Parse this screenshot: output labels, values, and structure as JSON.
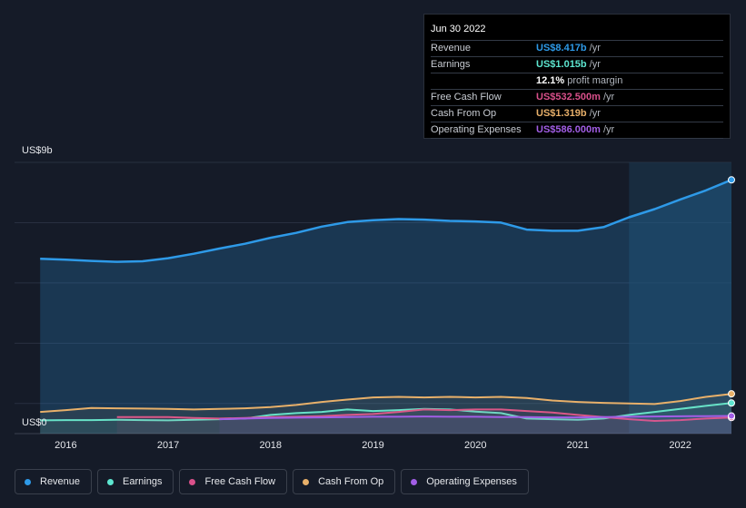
{
  "tooltip": {
    "date": "Jun 30 2022",
    "rows": [
      {
        "label": "Revenue",
        "value": "US$8.417b",
        "unit": "/yr",
        "color": "#2e9ae8"
      },
      {
        "label": "Earnings",
        "value": "US$1.015b",
        "unit": "/yr",
        "color": "#5de6d0"
      },
      {
        "label": "",
        "value": "12.1%",
        "unit": "profit margin",
        "color": "#ffffff"
      },
      {
        "label": "Free Cash Flow",
        "value": "US$532.500m",
        "unit": "/yr",
        "color": "#d9508a"
      },
      {
        "label": "Cash From Op",
        "value": "US$1.319b",
        "unit": "/yr",
        "color": "#e8b06a"
      },
      {
        "label": "Operating Expenses",
        "value": "US$586.000m",
        "unit": "/yr",
        "color": "#a25ee6"
      }
    ]
  },
  "chart_data": {
    "type": "area",
    "y_top_label": "US$9b",
    "y_bottom_label": "US$0",
    "ylim": [
      0,
      9
    ],
    "xlim": [
      2015.5,
      2022.5
    ],
    "x_ticks": [
      "2016",
      "2017",
      "2018",
      "2019",
      "2020",
      "2021",
      "2022"
    ],
    "highlight_start": 2021.5,
    "series": [
      {
        "name": "Revenue",
        "color": "#2e9ae8",
        "fill": true,
        "x": [
          2015.75,
          2016.0,
          2016.25,
          2016.5,
          2016.75,
          2017.0,
          2017.25,
          2017.5,
          2017.75,
          2018.0,
          2018.25,
          2018.5,
          2018.75,
          2019.0,
          2019.25,
          2019.5,
          2019.75,
          2020.0,
          2020.25,
          2020.5,
          2020.75,
          2021.0,
          2021.25,
          2021.5,
          2021.75,
          2022.0,
          2022.25,
          2022.5
        ],
        "y": [
          5.8,
          5.77,
          5.73,
          5.7,
          5.72,
          5.82,
          5.97,
          6.14,
          6.3,
          6.5,
          6.66,
          6.87,
          7.02,
          7.08,
          7.12,
          7.1,
          7.06,
          7.04,
          7.0,
          6.77,
          6.73,
          6.73,
          6.85,
          7.18,
          7.45,
          7.77,
          8.07,
          8.42
        ]
      },
      {
        "name": "Earnings",
        "color": "#5de6d0",
        "fill": false,
        "x": [
          2015.75,
          2016.0,
          2016.25,
          2016.5,
          2016.75,
          2017.0,
          2017.25,
          2017.5,
          2017.75,
          2018.0,
          2018.25,
          2018.5,
          2018.75,
          2019.0,
          2019.25,
          2019.5,
          2019.75,
          2020.0,
          2020.25,
          2020.5,
          2020.75,
          2021.0,
          2021.25,
          2021.5,
          2021.75,
          2022.0,
          2022.25,
          2022.5
        ],
        "y": [
          0.44,
          0.45,
          0.45,
          0.46,
          0.45,
          0.44,
          0.46,
          0.48,
          0.5,
          0.62,
          0.68,
          0.72,
          0.8,
          0.75,
          0.78,
          0.82,
          0.8,
          0.73,
          0.68,
          0.5,
          0.48,
          0.46,
          0.5,
          0.62,
          0.72,
          0.82,
          0.92,
          1.015
        ]
      },
      {
        "name": "Free Cash Flow",
        "color": "#d9508a",
        "fill": false,
        "x": [
          2016.5,
          2016.75,
          2017.0,
          2017.25,
          2017.5,
          2017.75,
          2018.0,
          2018.25,
          2018.5,
          2018.75,
          2019.0,
          2019.25,
          2019.5,
          2019.75,
          2020.0,
          2020.25,
          2020.5,
          2020.75,
          2021.0,
          2021.25,
          2021.5,
          2021.75,
          2022.0,
          2022.25,
          2022.5
        ],
        "y": [
          0.55,
          0.55,
          0.55,
          0.52,
          0.5,
          0.52,
          0.55,
          0.56,
          0.58,
          0.62,
          0.65,
          0.72,
          0.8,
          0.78,
          0.8,
          0.8,
          0.75,
          0.7,
          0.62,
          0.55,
          0.48,
          0.42,
          0.45,
          0.5,
          0.5325
        ]
      },
      {
        "name": "Cash From Op",
        "color": "#e8b06a",
        "fill": false,
        "x": [
          2015.75,
          2016.0,
          2016.25,
          2016.5,
          2016.75,
          2017.0,
          2017.25,
          2017.5,
          2017.75,
          2018.0,
          2018.25,
          2018.5,
          2018.75,
          2019.0,
          2019.25,
          2019.5,
          2019.75,
          2020.0,
          2020.25,
          2020.5,
          2020.75,
          2021.0,
          2021.25,
          2021.5,
          2021.75,
          2022.0,
          2022.25,
          2022.5
        ],
        "y": [
          0.72,
          0.78,
          0.85,
          0.84,
          0.83,
          0.82,
          0.8,
          0.82,
          0.84,
          0.88,
          0.95,
          1.05,
          1.13,
          1.2,
          1.22,
          1.2,
          1.22,
          1.2,
          1.22,
          1.18,
          1.1,
          1.05,
          1.02,
          1.0,
          0.98,
          1.08,
          1.22,
          1.319
        ]
      },
      {
        "name": "Operating Expenses",
        "color": "#a25ee6",
        "fill": false,
        "x": [
          2017.5,
          2017.75,
          2018.0,
          2018.25,
          2018.5,
          2018.75,
          2019.0,
          2019.25,
          2019.5,
          2019.75,
          2020.0,
          2020.25,
          2020.5,
          2020.75,
          2021.0,
          2021.25,
          2021.5,
          2021.75,
          2022.0,
          2022.25,
          2022.5
        ],
        "y": [
          0.48,
          0.5,
          0.52,
          0.53,
          0.54,
          0.55,
          0.56,
          0.56,
          0.57,
          0.56,
          0.56,
          0.55,
          0.55,
          0.54,
          0.54,
          0.55,
          0.56,
          0.57,
          0.575,
          0.58,
          0.586
        ]
      }
    ]
  },
  "legend": [
    {
      "label": "Revenue",
      "color": "#2e9ae8"
    },
    {
      "label": "Earnings",
      "color": "#5de6d0"
    },
    {
      "label": "Free Cash Flow",
      "color": "#d9508a"
    },
    {
      "label": "Cash From Op",
      "color": "#e8b06a"
    },
    {
      "label": "Operating Expenses",
      "color": "#a25ee6"
    }
  ]
}
